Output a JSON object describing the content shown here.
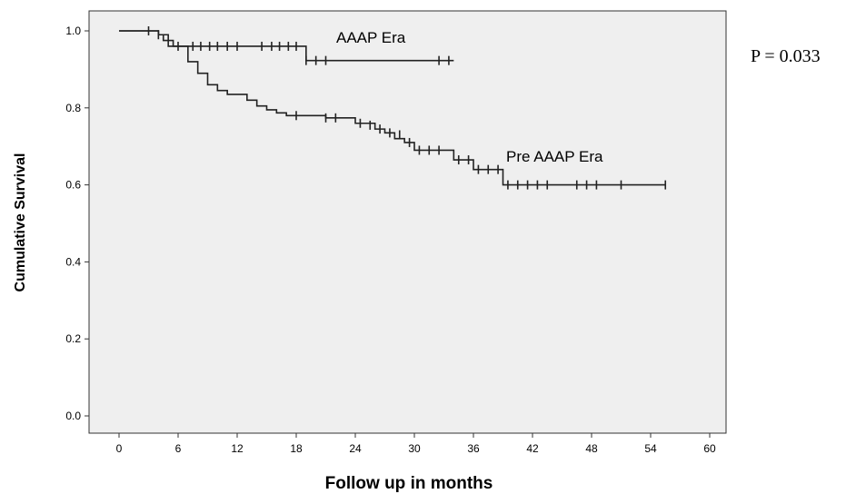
{
  "chart_data": {
    "type": "line",
    "subtype": "kaplan-meier step",
    "xlabel": "Follow up in months",
    "ylabel": "Cumulative Survival",
    "xlim": [
      0,
      60
    ],
    "ylim": [
      0,
      1.0
    ],
    "x_ticks": [
      0,
      6,
      12,
      18,
      24,
      30,
      36,
      42,
      48,
      54,
      60
    ],
    "y_ticks": [
      0.0,
      0.2,
      0.4,
      0.6,
      0.8,
      1.0
    ],
    "x_tick_labels": [
      "0",
      "6",
      "12",
      "18",
      "24",
      "30",
      "36",
      "42",
      "48",
      "54",
      "60"
    ],
    "y_tick_labels": [
      "0.0",
      "0.2",
      "0.4",
      "0.6",
      "0.8",
      "1.0"
    ],
    "grid": false,
    "plot_background": "#efefef",
    "annotation": "P = 0.033",
    "series": [
      {
        "name": "AAAP Era",
        "steps": [
          [
            0,
            1.0
          ],
          [
            4,
            0.99
          ],
          [
            5,
            0.96
          ],
          [
            19,
            0.923
          ],
          [
            34,
            0.923
          ]
        ],
        "censored": [
          [
            3,
            1.0
          ],
          [
            4,
            0.99
          ],
          [
            6,
            0.96
          ],
          [
            7.5,
            0.96
          ],
          [
            8.3,
            0.96
          ],
          [
            9.2,
            0.96
          ],
          [
            10,
            0.96
          ],
          [
            11,
            0.96
          ],
          [
            12,
            0.96
          ],
          [
            14.5,
            0.96
          ],
          [
            15.5,
            0.96
          ],
          [
            16.3,
            0.96
          ],
          [
            17.2,
            0.96
          ],
          [
            18,
            0.96
          ],
          [
            19,
            0.923
          ],
          [
            20,
            0.923
          ],
          [
            21,
            0.923
          ],
          [
            32.5,
            0.923
          ],
          [
            33.5,
            0.923
          ]
        ]
      },
      {
        "name": "Pre AAAP Era",
        "steps": [
          [
            0,
            1.0
          ],
          [
            4,
            0.99
          ],
          [
            4.5,
            0.975
          ],
          [
            5.5,
            0.96
          ],
          [
            7,
            0.92
          ],
          [
            8,
            0.89
          ],
          [
            9,
            0.86
          ],
          [
            10,
            0.845
          ],
          [
            11,
            0.835
          ],
          [
            13,
            0.82
          ],
          [
            14,
            0.805
          ],
          [
            15,
            0.795
          ],
          [
            16,
            0.787
          ],
          [
            17,
            0.78
          ],
          [
            21,
            0.774
          ],
          [
            24,
            0.76
          ],
          [
            26,
            0.745
          ],
          [
            27,
            0.735
          ],
          [
            28,
            0.72
          ],
          [
            29,
            0.71
          ],
          [
            30,
            0.69
          ],
          [
            34,
            0.665
          ],
          [
            36,
            0.64
          ],
          [
            39,
            0.6
          ],
          [
            55.5,
            0.6
          ]
        ],
        "censored": [
          [
            18,
            0.78
          ],
          [
            21,
            0.774
          ],
          [
            22,
            0.774
          ],
          [
            24.5,
            0.76
          ],
          [
            25.5,
            0.755
          ],
          [
            26.5,
            0.745
          ],
          [
            27.5,
            0.735
          ],
          [
            28.5,
            0.73
          ],
          [
            29.5,
            0.71
          ],
          [
            30.5,
            0.69
          ],
          [
            31.5,
            0.69
          ],
          [
            32.5,
            0.69
          ],
          [
            34.5,
            0.665
          ],
          [
            35.5,
            0.665
          ],
          [
            36.5,
            0.64
          ],
          [
            37.5,
            0.64
          ],
          [
            38.5,
            0.64
          ],
          [
            39.5,
            0.6
          ],
          [
            40.5,
            0.6
          ],
          [
            41.5,
            0.6
          ],
          [
            42.5,
            0.6
          ],
          [
            43.5,
            0.6
          ],
          [
            46.5,
            0.6
          ],
          [
            47.5,
            0.6
          ],
          [
            48.5,
            0.6
          ],
          [
            51,
            0.6
          ],
          [
            55.5,
            0.6
          ]
        ]
      }
    ]
  }
}
